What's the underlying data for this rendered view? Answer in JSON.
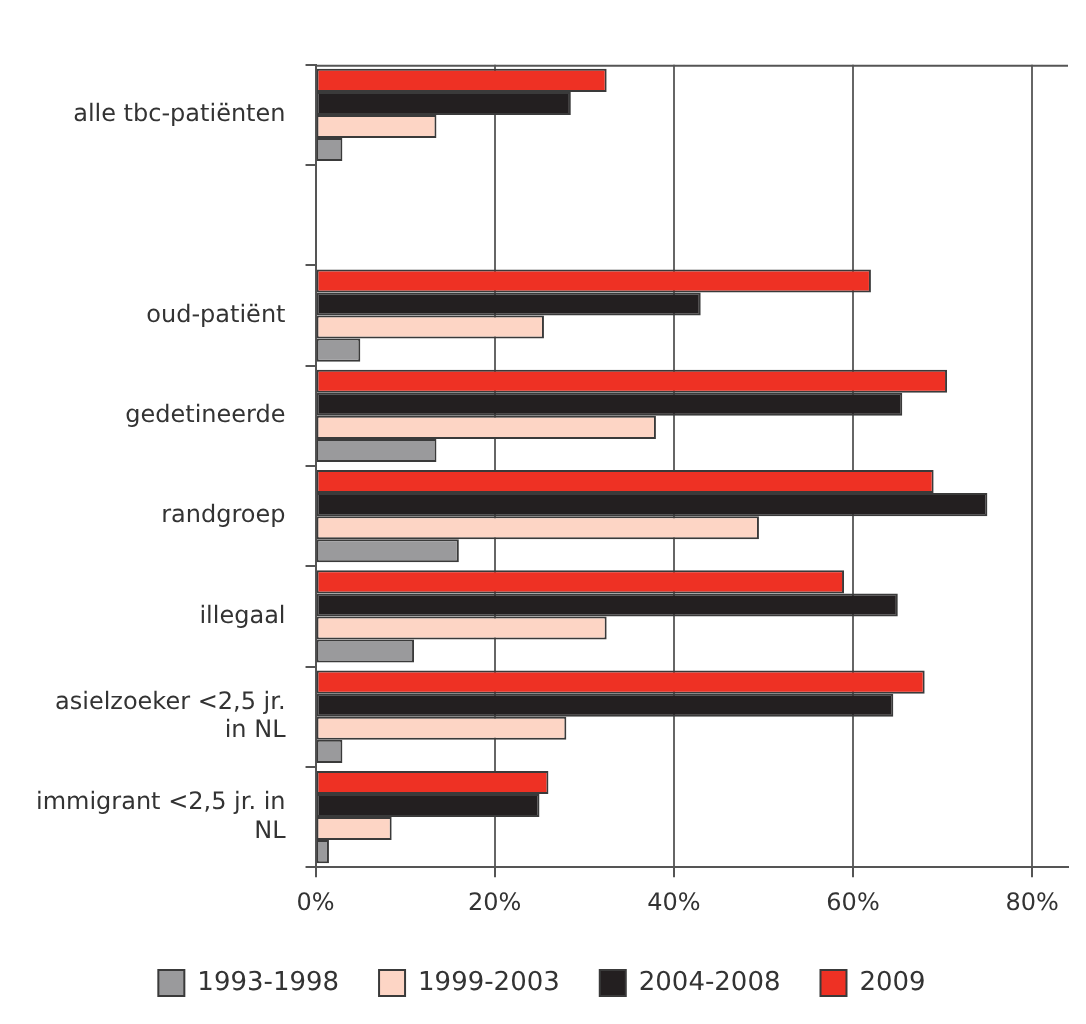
{
  "chart_data": {
    "type": "bar",
    "orientation": "horizontal",
    "categories": [
      "alle tbc-patiënten",
      null,
      "oud-patiënt",
      "gedetineerde",
      "randgroep",
      "illegaal",
      "asielzoeker <2,5 jr. in NL",
      "immigrant <2,5 jr. in NL"
    ],
    "series": [
      {
        "name": "1993-1998",
        "color": "#9a9a9c",
        "values": [
          3,
          null,
          5,
          13.5,
          16,
          11,
          3,
          1.5
        ]
      },
      {
        "name": "1999-2003",
        "color": "#fdd5c5",
        "values": [
          13.5,
          null,
          25.5,
          38,
          49.5,
          32.5,
          28,
          8.5
        ]
      },
      {
        "name": "2004-2008",
        "color": "#231f20",
        "values": [
          28.5,
          null,
          43,
          65.5,
          75,
          65,
          64.5,
          25
        ]
      },
      {
        "name": "2009",
        "color": "#ee3124",
        "values": [
          32.5,
          null,
          62,
          70.5,
          69,
          59,
          68,
          26
        ]
      }
    ],
    "xlim": [
      0,
      84
    ],
    "xticks": [
      {
        "value": 0,
        "label": "0%"
      },
      {
        "value": 20,
        "label": "20%"
      },
      {
        "value": 40,
        "label": "40%"
      },
      {
        "value": 60,
        "label": "60%"
      },
      {
        "value": 80,
        "label": "80%"
      }
    ],
    "grid": "x",
    "legend": "bottom"
  }
}
